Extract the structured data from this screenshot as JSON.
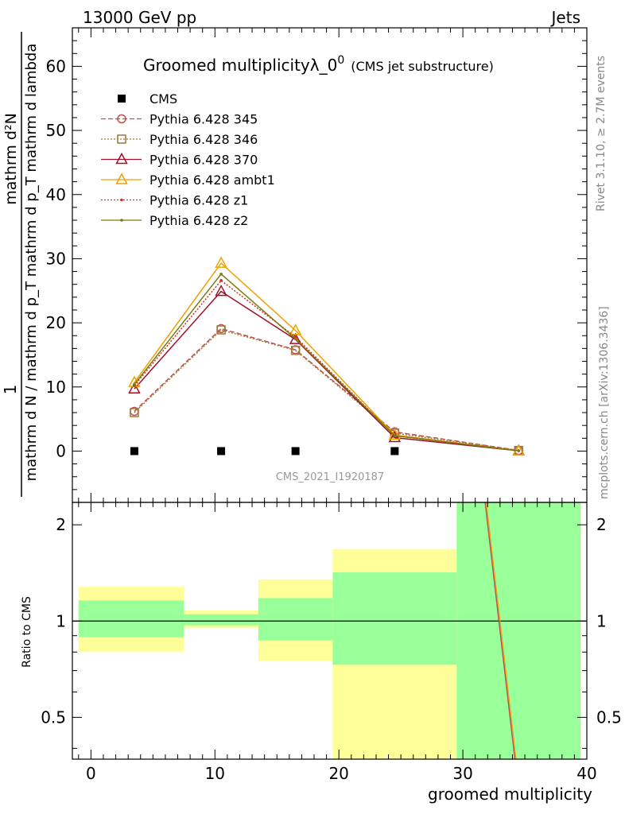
{
  "header": {
    "left": "13000 GeV pp",
    "right": "Jets"
  },
  "side_labels": {
    "rivet": "Rivet 3.1.10, ≥ 2.7M events",
    "mcplots": "mcplots.cern.ch [arXiv:1306.3436]"
  },
  "chart_data": [
    {
      "type": "line",
      "title_main": "Groomed multiplicityλ_0",
      "title_sup": "0",
      "title_sub": "(CMS jet substructure)",
      "watermark": "CMS_2021_I1920187",
      "ylabel_numerator": "mathrm d²N",
      "ylabel_denominator": "mathrm d N / mathrm d p_T mathrm d p_T mathrm d lambda",
      "ylabel_prefix": "1",
      "xlim": [
        -1.5,
        40
      ],
      "ylim": [
        -8,
        66
      ],
      "yticks": [
        0,
        10,
        20,
        30,
        40,
        50,
        60
      ],
      "x": [
        3.5,
        10.5,
        16.5,
        24.5,
        34.5
      ],
      "series": [
        {
          "name": "CMS",
          "values": [
            0,
            0,
            0,
            0,
            null
          ],
          "color": "#000000",
          "marker": "filled-square",
          "style": "none"
        },
        {
          "name": "Pythia 6.428 345",
          "values": [
            6.2,
            19.1,
            15.8,
            3.0,
            0.1
          ],
          "color": "#c0504d",
          "marker": "open-circle",
          "style": "dashed"
        },
        {
          "name": "Pythia 6.428 346",
          "values": [
            6.0,
            18.9,
            15.7,
            2.8,
            0.1
          ],
          "color": "#9c7a3c",
          "marker": "open-square",
          "style": "dotted"
        },
        {
          "name": "Pythia 6.428 370",
          "values": [
            9.7,
            24.9,
            17.4,
            2.1,
            0.05
          ],
          "color": "#a0102a",
          "marker": "open-triangle",
          "style": "solid"
        },
        {
          "name": "Pythia 6.428 ambt1",
          "values": [
            10.7,
            29.3,
            18.8,
            2.5,
            0.05
          ],
          "color": "#f0a000",
          "marker": "open-triangle",
          "style": "solid"
        },
        {
          "name": "Pythia 6.428 z1",
          "values": [
            10.2,
            26.6,
            17.8,
            2.4,
            0.05
          ],
          "color": "#d03020",
          "marker": "small-dot",
          "style": "dotted"
        },
        {
          "name": "Pythia 6.428 z2",
          "values": [
            10.4,
            27.6,
            17.5,
            2.4,
            0.05
          ],
          "color": "#7a7a10",
          "marker": "small-dot",
          "style": "solid"
        }
      ]
    },
    {
      "type": "area",
      "ylabel": "Ratio to CMS",
      "xlabel": "groomed multiplicity",
      "xlim": [
        -1.5,
        40
      ],
      "ylim": [
        0.37,
        2.35
      ],
      "log_y": true,
      "yticks": [
        0.5,
        1,
        2
      ],
      "xticks": [
        0,
        10,
        20,
        30,
        40
      ],
      "bins": [
        {
          "lo": -1,
          "hi": 7.5,
          "green": [
            0.89,
            1.16
          ],
          "yellow": [
            0.8,
            1.28
          ]
        },
        {
          "lo": 7.5,
          "hi": 13.5,
          "green": [
            0.97,
            1.05
          ],
          "yellow": [
            0.95,
            1.08
          ]
        },
        {
          "lo": 13.5,
          "hi": 19.5,
          "green": [
            0.87,
            1.18
          ],
          "yellow": [
            0.75,
            1.35
          ]
        },
        {
          "lo": 19.5,
          "hi": 29.5,
          "green": [
            0.73,
            1.42
          ],
          "yellow": [
            0.37,
            1.68
          ]
        },
        {
          "lo": 29.5,
          "hi": 39.5,
          "green": [
            0.37,
            2.35
          ],
          "yellow": [
            0.37,
            2.35
          ]
        }
      ],
      "ratio_line": {
        "x": [
          31.8,
          34.2
        ],
        "y": [
          2.35,
          0.37
        ],
        "color": "#c0504d"
      }
    }
  ]
}
